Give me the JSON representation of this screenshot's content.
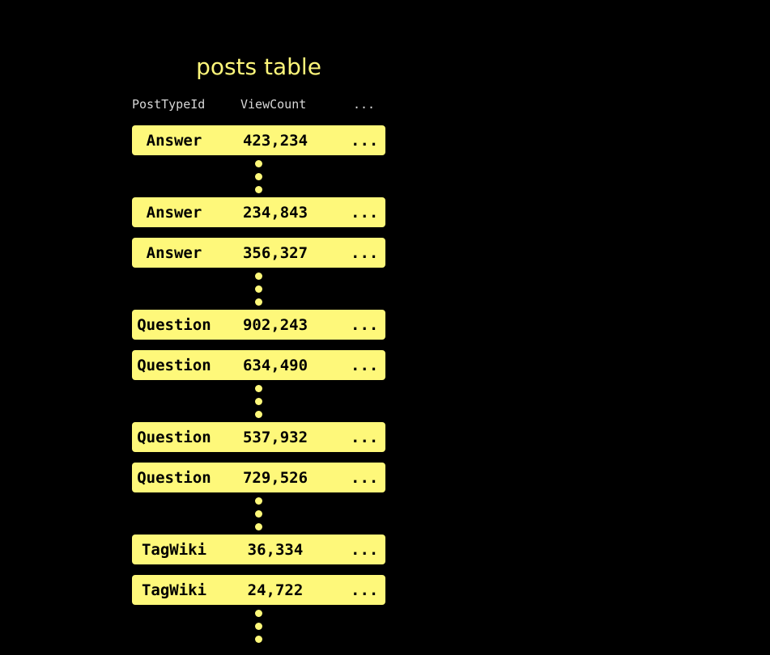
{
  "title": "posts table",
  "columns": [
    "PostTypeId",
    "ViewCount",
    "..."
  ],
  "rows": [
    {
      "type": "Answer",
      "views": "423,234",
      "more": "..."
    },
    {
      "type": "Answer",
      "views": "234,843",
      "more": "..."
    },
    {
      "type": "Answer",
      "views": "356,327",
      "more": "..."
    },
    {
      "type": "Question",
      "views": "902,243",
      "more": "..."
    },
    {
      "type": "Question",
      "views": "634,490",
      "more": "..."
    },
    {
      "type": "Question",
      "views": "537,932",
      "more": "..."
    },
    {
      "type": "Question",
      "views": "729,526",
      "more": "..."
    },
    {
      "type": "TagWiki",
      "views": "36,334",
      "more": "..."
    },
    {
      "type": "TagWiki",
      "views": "24,722",
      "more": "..."
    }
  ],
  "colors": {
    "background": "#000000",
    "accent": "#fef87a"
  }
}
